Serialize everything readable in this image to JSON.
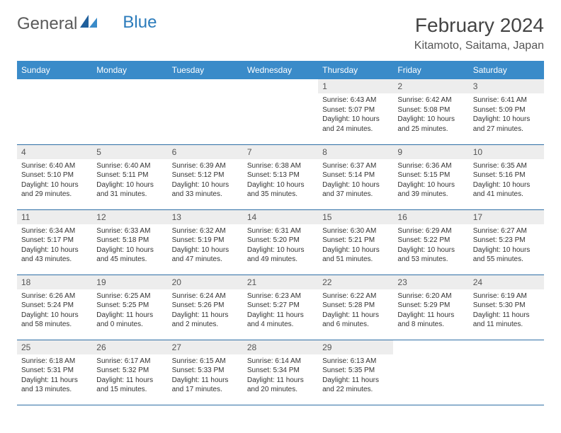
{
  "logo": {
    "text1": "General",
    "text2": "Blue"
  },
  "title": "February 2024",
  "location": "Kitamoto, Saitama, Japan",
  "colors": {
    "header_bg": "#3a8bc9",
    "header_text": "#ffffff",
    "daynum_bg": "#ededed",
    "border": "#2e6ea5",
    "body_text": "#333333"
  },
  "daynames": [
    "Sunday",
    "Monday",
    "Tuesday",
    "Wednesday",
    "Thursday",
    "Friday",
    "Saturday"
  ],
  "weeks": [
    [
      {
        "n": "",
        "sr": "",
        "ss": "",
        "dl": ""
      },
      {
        "n": "",
        "sr": "",
        "ss": "",
        "dl": ""
      },
      {
        "n": "",
        "sr": "",
        "ss": "",
        "dl": ""
      },
      {
        "n": "",
        "sr": "",
        "ss": "",
        "dl": ""
      },
      {
        "n": "1",
        "sr": "Sunrise: 6:43 AM",
        "ss": "Sunset: 5:07 PM",
        "dl": "Daylight: 10 hours and 24 minutes."
      },
      {
        "n": "2",
        "sr": "Sunrise: 6:42 AM",
        "ss": "Sunset: 5:08 PM",
        "dl": "Daylight: 10 hours and 25 minutes."
      },
      {
        "n": "3",
        "sr": "Sunrise: 6:41 AM",
        "ss": "Sunset: 5:09 PM",
        "dl": "Daylight: 10 hours and 27 minutes."
      }
    ],
    [
      {
        "n": "4",
        "sr": "Sunrise: 6:40 AM",
        "ss": "Sunset: 5:10 PM",
        "dl": "Daylight: 10 hours and 29 minutes."
      },
      {
        "n": "5",
        "sr": "Sunrise: 6:40 AM",
        "ss": "Sunset: 5:11 PM",
        "dl": "Daylight: 10 hours and 31 minutes."
      },
      {
        "n": "6",
        "sr": "Sunrise: 6:39 AM",
        "ss": "Sunset: 5:12 PM",
        "dl": "Daylight: 10 hours and 33 minutes."
      },
      {
        "n": "7",
        "sr": "Sunrise: 6:38 AM",
        "ss": "Sunset: 5:13 PM",
        "dl": "Daylight: 10 hours and 35 minutes."
      },
      {
        "n": "8",
        "sr": "Sunrise: 6:37 AM",
        "ss": "Sunset: 5:14 PM",
        "dl": "Daylight: 10 hours and 37 minutes."
      },
      {
        "n": "9",
        "sr": "Sunrise: 6:36 AM",
        "ss": "Sunset: 5:15 PM",
        "dl": "Daylight: 10 hours and 39 minutes."
      },
      {
        "n": "10",
        "sr": "Sunrise: 6:35 AM",
        "ss": "Sunset: 5:16 PM",
        "dl": "Daylight: 10 hours and 41 minutes."
      }
    ],
    [
      {
        "n": "11",
        "sr": "Sunrise: 6:34 AM",
        "ss": "Sunset: 5:17 PM",
        "dl": "Daylight: 10 hours and 43 minutes."
      },
      {
        "n": "12",
        "sr": "Sunrise: 6:33 AM",
        "ss": "Sunset: 5:18 PM",
        "dl": "Daylight: 10 hours and 45 minutes."
      },
      {
        "n": "13",
        "sr": "Sunrise: 6:32 AM",
        "ss": "Sunset: 5:19 PM",
        "dl": "Daylight: 10 hours and 47 minutes."
      },
      {
        "n": "14",
        "sr": "Sunrise: 6:31 AM",
        "ss": "Sunset: 5:20 PM",
        "dl": "Daylight: 10 hours and 49 minutes."
      },
      {
        "n": "15",
        "sr": "Sunrise: 6:30 AM",
        "ss": "Sunset: 5:21 PM",
        "dl": "Daylight: 10 hours and 51 minutes."
      },
      {
        "n": "16",
        "sr": "Sunrise: 6:29 AM",
        "ss": "Sunset: 5:22 PM",
        "dl": "Daylight: 10 hours and 53 minutes."
      },
      {
        "n": "17",
        "sr": "Sunrise: 6:27 AM",
        "ss": "Sunset: 5:23 PM",
        "dl": "Daylight: 10 hours and 55 minutes."
      }
    ],
    [
      {
        "n": "18",
        "sr": "Sunrise: 6:26 AM",
        "ss": "Sunset: 5:24 PM",
        "dl": "Daylight: 10 hours and 58 minutes."
      },
      {
        "n": "19",
        "sr": "Sunrise: 6:25 AM",
        "ss": "Sunset: 5:25 PM",
        "dl": "Daylight: 11 hours and 0 minutes."
      },
      {
        "n": "20",
        "sr": "Sunrise: 6:24 AM",
        "ss": "Sunset: 5:26 PM",
        "dl": "Daylight: 11 hours and 2 minutes."
      },
      {
        "n": "21",
        "sr": "Sunrise: 6:23 AM",
        "ss": "Sunset: 5:27 PM",
        "dl": "Daylight: 11 hours and 4 minutes."
      },
      {
        "n": "22",
        "sr": "Sunrise: 6:22 AM",
        "ss": "Sunset: 5:28 PM",
        "dl": "Daylight: 11 hours and 6 minutes."
      },
      {
        "n": "23",
        "sr": "Sunrise: 6:20 AM",
        "ss": "Sunset: 5:29 PM",
        "dl": "Daylight: 11 hours and 8 minutes."
      },
      {
        "n": "24",
        "sr": "Sunrise: 6:19 AM",
        "ss": "Sunset: 5:30 PM",
        "dl": "Daylight: 11 hours and 11 minutes."
      }
    ],
    [
      {
        "n": "25",
        "sr": "Sunrise: 6:18 AM",
        "ss": "Sunset: 5:31 PM",
        "dl": "Daylight: 11 hours and 13 minutes."
      },
      {
        "n": "26",
        "sr": "Sunrise: 6:17 AM",
        "ss": "Sunset: 5:32 PM",
        "dl": "Daylight: 11 hours and 15 minutes."
      },
      {
        "n": "27",
        "sr": "Sunrise: 6:15 AM",
        "ss": "Sunset: 5:33 PM",
        "dl": "Daylight: 11 hours and 17 minutes."
      },
      {
        "n": "28",
        "sr": "Sunrise: 6:14 AM",
        "ss": "Sunset: 5:34 PM",
        "dl": "Daylight: 11 hours and 20 minutes."
      },
      {
        "n": "29",
        "sr": "Sunrise: 6:13 AM",
        "ss": "Sunset: 5:35 PM",
        "dl": "Daylight: 11 hours and 22 minutes."
      },
      {
        "n": "",
        "sr": "",
        "ss": "",
        "dl": ""
      },
      {
        "n": "",
        "sr": "",
        "ss": "",
        "dl": ""
      }
    ]
  ]
}
